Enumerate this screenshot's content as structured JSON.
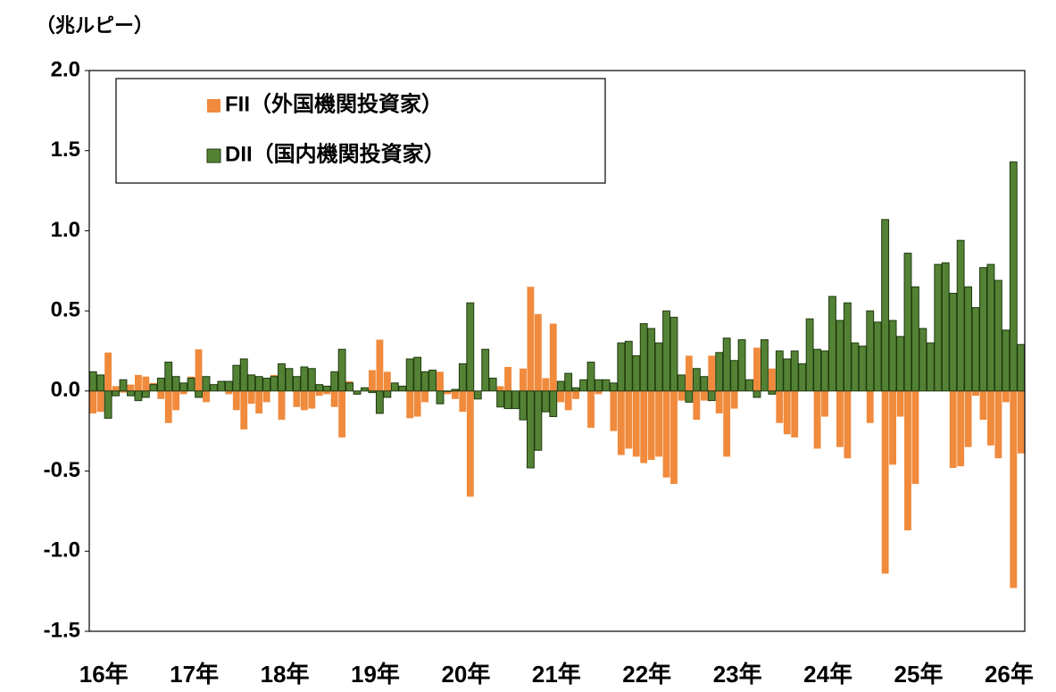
{
  "chart_data": {
    "type": "bar",
    "unit_label": "（兆ルピー）",
    "categories": [
      "16年",
      null,
      null,
      null,
      null,
      null,
      null,
      null,
      null,
      null,
      null,
      null,
      "17年",
      null,
      null,
      null,
      null,
      null,
      null,
      null,
      null,
      null,
      null,
      null,
      "18年",
      null,
      null,
      null,
      null,
      null,
      null,
      null,
      null,
      null,
      null,
      null,
      "19年",
      null,
      null,
      null,
      null,
      null,
      null,
      null,
      null,
      null,
      null,
      null,
      "20年",
      null,
      null,
      null,
      null,
      null,
      null,
      null,
      null,
      null,
      null,
      null,
      "21年",
      null,
      null,
      null,
      null,
      null,
      null,
      null,
      null,
      null,
      null,
      null,
      "22年",
      null,
      null,
      null,
      null,
      null,
      null,
      null,
      null,
      null,
      null,
      null,
      "23年",
      null,
      null,
      null,
      null,
      null,
      null,
      null,
      null,
      null,
      null,
      null,
      "24年",
      null,
      null,
      null,
      null,
      null,
      null,
      null,
      null,
      null,
      null,
      null,
      "25年",
      null,
      null,
      null,
      null,
      null,
      null,
      null,
      null,
      null,
      null,
      null,
      "26年",
      null,
      null,
      null
    ],
    "series": [
      {
        "name": "FII（外国機関投資家）",
        "color": "#f08a3c",
        "values": [
          -0.14,
          -0.13,
          0.24,
          0.03,
          -0.01,
          0.04,
          0.1,
          0.09,
          0.05,
          -0.05,
          -0.2,
          -0.12,
          -0.02,
          0.09,
          0.26,
          -0.07,
          0.01,
          0.04,
          -0.02,
          -0.12,
          -0.24,
          -0.08,
          -0.14,
          -0.07,
          0.1,
          -0.18,
          0.02,
          -0.1,
          -0.12,
          -0.11,
          -0.03,
          -0.02,
          -0.1,
          -0.29,
          0.06,
          0.0,
          0.02,
          0.13,
          0.32,
          0.12,
          0.05,
          0.01,
          -0.17,
          -0.16,
          -0.07,
          0.11,
          0.12,
          -0.02,
          -0.05,
          -0.13,
          -0.66,
          -0.05,
          0.14,
          0.05,
          0.03,
          0.15,
          -0.1,
          0.14,
          0.65,
          0.48,
          0.08,
          0.42,
          -0.07,
          -0.12,
          -0.05,
          0.02,
          -0.23,
          -0.02,
          0.06,
          -0.25,
          -0.4,
          -0.36,
          -0.41,
          -0.45,
          -0.43,
          -0.41,
          -0.54,
          -0.58,
          -0.06,
          0.22,
          -0.18,
          -0.06,
          0.22,
          -0.14,
          -0.41,
          -0.11,
          0.05,
          0.04,
          0.27,
          0.27,
          0.14,
          -0.2,
          -0.27,
          -0.29,
          0.03,
          0.31,
          -0.36,
          -0.16,
          0.03,
          -0.35,
          -0.42,
          0.02,
          0.05,
          -0.2,
          0.13,
          -1.14,
          -0.46,
          -0.16,
          -0.87,
          -0.58,
          0.03,
          0.03,
          0.12,
          0.12,
          -0.48,
          -0.47,
          -0.35,
          -0.03,
          -0.18,
          -0.34,
          -0.42,
          -0.07,
          -1.23,
          -0.39
        ]
      },
      {
        "name": "DII（国内機関投資家）",
        "color": "#548235",
        "values": [
          0.12,
          0.1,
          -0.17,
          -0.03,
          0.07,
          -0.03,
          -0.06,
          -0.04,
          0.04,
          0.08,
          0.18,
          0.09,
          0.05,
          0.08,
          -0.04,
          0.09,
          0.04,
          0.06,
          0.06,
          0.16,
          0.2,
          0.1,
          0.09,
          0.08,
          0.09,
          0.17,
          0.14,
          0.09,
          0.15,
          0.14,
          0.04,
          0.03,
          0.12,
          0.26,
          0.05,
          -0.02,
          0.02,
          -0.01,
          -0.14,
          -0.04,
          0.05,
          0.03,
          0.2,
          0.21,
          0.12,
          0.13,
          -0.08,
          0.0,
          0.01,
          0.17,
          0.55,
          -0.05,
          0.26,
          0.08,
          -0.1,
          -0.11,
          -0.11,
          -0.18,
          -0.48,
          -0.37,
          -0.13,
          -0.16,
          0.06,
          0.11,
          0.02,
          0.07,
          0.18,
          0.07,
          0.07,
          0.05,
          0.3,
          0.31,
          0.22,
          0.42,
          0.39,
          0.3,
          0.5,
          0.46,
          0.1,
          -0.07,
          0.14,
          0.09,
          -0.06,
          0.24,
          0.33,
          0.19,
          0.32,
          0.07,
          -0.04,
          0.32,
          -0.02,
          0.25,
          0.2,
          0.25,
          0.17,
          0.45,
          0.26,
          0.25,
          0.59,
          0.44,
          0.55,
          0.3,
          0.28,
          0.5,
          0.43,
          1.07,
          0.44,
          0.34,
          0.86,
          0.65,
          0.39,
          0.3,
          0.79,
          0.8,
          0.61,
          0.94,
          0.65,
          0.52,
          0.77,
          0.79,
          0.69,
          0.38,
          1.43,
          0.29
        ]
      }
    ],
    "ylim": [
      -1.5,
      2.0
    ],
    "yticks": [
      {
        "value": -1.5,
        "label": "-1.5"
      },
      {
        "value": -1,
        "label": "-1.0"
      },
      -0.5,
      {
        "value": 0,
        "label": "0.0"
      },
      0.5,
      {
        "value": 1,
        "label": "1.0"
      },
      1.5,
      {
        "value": 2,
        "label": "2.0"
      }
    ],
    "grid": false,
    "legend": "top-left"
  }
}
